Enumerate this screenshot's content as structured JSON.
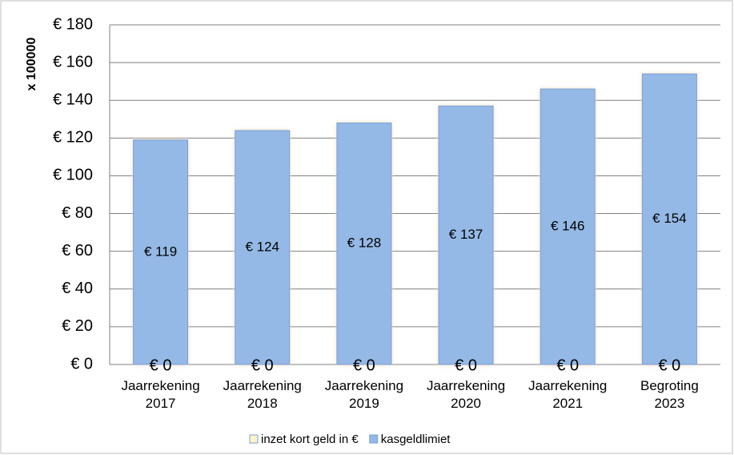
{
  "chart_data": {
    "type": "bar",
    "y_axis_label": "x 100000",
    "categories": [
      "Jaarrekening 2017",
      "Jaarrekening 2018",
      "Jaarrekening 2019",
      "Jaarrekening 2020",
      "Jaarrekening 2021",
      "Begroting 2023"
    ],
    "series": [
      {
        "name": "inzet kort geld in €",
        "color": "#fdf3c8",
        "values": [
          0,
          0,
          0,
          0,
          0,
          0
        ],
        "value_labels": [
          "€ 0",
          "€ 0",
          "€ 0",
          "€ 0",
          "€ 0",
          "€ 0"
        ]
      },
      {
        "name": "kasgeldlimiet",
        "color": "#95b9e6",
        "values": [
          119,
          124,
          128,
          137,
          146,
          154
        ],
        "value_labels": [
          "€ 119",
          "€ 124",
          "€ 128",
          "€ 137",
          "€ 146",
          "€ 154"
        ]
      }
    ],
    "ylim": [
      0,
      180
    ],
    "yticks": [
      {
        "value": 0,
        "label": "€ 0"
      },
      {
        "value": 20,
        "label": "€ 20"
      },
      {
        "value": 40,
        "label": "€ 40"
      },
      {
        "value": 60,
        "label": "€ 60"
      },
      {
        "value": 80,
        "label": "€ 80"
      },
      {
        "value": 100,
        "label": "€ 100"
      },
      {
        "value": 120,
        "label": "€ 120"
      },
      {
        "value": 140,
        "label": "€ 140"
      },
      {
        "value": 160,
        "label": "€ 160"
      },
      {
        "value": 180,
        "label": "€ 180"
      }
    ],
    "grid": true,
    "legend": "bottom"
  }
}
